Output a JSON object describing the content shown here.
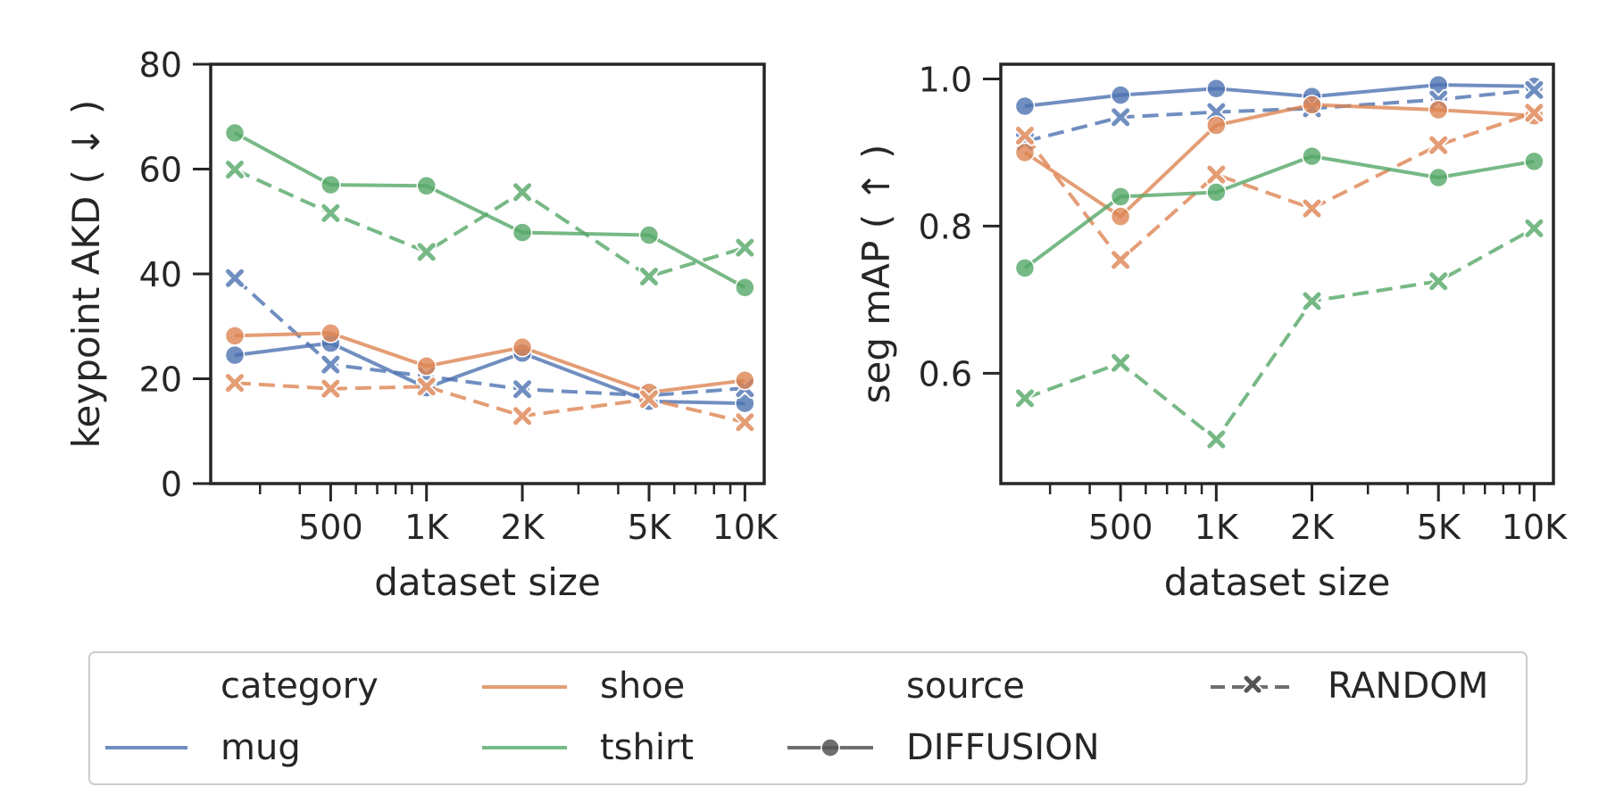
{
  "chart_data": [
    {
      "type": "line",
      "xlabel": "dataset size",
      "ylabel": "keypoint AKD ( ↓ )",
      "xscale": "log",
      "xlim": [
        210,
        11500
      ],
      "ylim": [
        0,
        80
      ],
      "xticks": [
        {
          "value": 500,
          "label": "500"
        },
        {
          "value": 1000,
          "label": "1K"
        },
        {
          "value": 2000,
          "label": "2K"
        },
        {
          "value": 5000,
          "label": "5K"
        },
        {
          "value": 10000,
          "label": "10K"
        }
      ],
      "yticks": [
        {
          "value": 0,
          "label": "0"
        },
        {
          "value": 20,
          "label": "20"
        },
        {
          "value": 40,
          "label": "40"
        },
        {
          "value": 60,
          "label": "60"
        },
        {
          "value": 80,
          "label": "80"
        }
      ],
      "x": [
        250,
        500,
        1000,
        2000,
        5000,
        10000
      ],
      "series": [
        {
          "category": "mug",
          "source": "DIFFUSION",
          "values": [
            24.5,
            26.8,
            18.3,
            24.9,
            15.7,
            15.3
          ]
        },
        {
          "category": "mug",
          "source": "RANDOM",
          "values": [
            39.2,
            22.7,
            20.5,
            18.0,
            16.8,
            18.2
          ]
        },
        {
          "category": "shoe",
          "source": "DIFFUSION",
          "values": [
            28.2,
            28.7,
            22.4,
            26.0,
            17.4,
            19.7
          ]
        },
        {
          "category": "shoe",
          "source": "RANDOM",
          "values": [
            19.2,
            18.1,
            18.5,
            12.9,
            16.1,
            11.7
          ]
        },
        {
          "category": "tshirt",
          "source": "DIFFUSION",
          "values": [
            66.9,
            57.0,
            56.8,
            47.9,
            47.4,
            37.4
          ]
        },
        {
          "category": "tshirt",
          "source": "RANDOM",
          "values": [
            59.9,
            51.6,
            44.2,
            55.6,
            39.5,
            45.0
          ]
        }
      ]
    },
    {
      "type": "line",
      "xlabel": "dataset size",
      "ylabel": "seg mAP ( ↑ )",
      "xscale": "log",
      "xlim": [
        210,
        11500
      ],
      "ylim": [
        0.45,
        1.02
      ],
      "xticks": [
        {
          "value": 500,
          "label": "500"
        },
        {
          "value": 1000,
          "label": "1K"
        },
        {
          "value": 2000,
          "label": "2K"
        },
        {
          "value": 5000,
          "label": "5K"
        },
        {
          "value": 10000,
          "label": "10K"
        }
      ],
      "yticks": [
        {
          "value": 0.6,
          "label": "0.6"
        },
        {
          "value": 0.8,
          "label": "0.8"
        },
        {
          "value": 1.0,
          "label": "1.0"
        }
      ],
      "x": [
        250,
        500,
        1000,
        2000,
        5000,
        10000
      ],
      "series": [
        {
          "category": "mug",
          "source": "DIFFUSION",
          "values": [
            0.963,
            0.978,
            0.987,
            0.976,
            0.992,
            0.99
          ]
        },
        {
          "category": "mug",
          "source": "RANDOM",
          "values": [
            0.915,
            0.948,
            0.955,
            0.96,
            0.972,
            0.985
          ]
        },
        {
          "category": "shoe",
          "source": "DIFFUSION",
          "values": [
            0.9,
            0.813,
            0.937,
            0.965,
            0.958,
            0.95
          ]
        },
        {
          "category": "shoe",
          "source": "RANDOM",
          "values": [
            0.923,
            0.754,
            0.87,
            0.824,
            0.91,
            0.954
          ]
        },
        {
          "category": "tshirt",
          "source": "DIFFUSION",
          "values": [
            0.743,
            0.84,
            0.846,
            0.895,
            0.866,
            0.888
          ]
        },
        {
          "category": "tshirt",
          "source": "RANDOM",
          "values": [
            0.566,
            0.614,
            0.51,
            0.698,
            0.725,
            0.797
          ]
        }
      ]
    }
  ],
  "legend": {
    "category_title": "category",
    "source_title": "source",
    "categories": [
      {
        "name": "mug",
        "color": "#4c72b0"
      },
      {
        "name": "shoe",
        "color": "#dd8452"
      },
      {
        "name": "tshirt",
        "color": "#55a868"
      }
    ],
    "sources": [
      {
        "name": "DIFFUSION",
        "marker": "circle",
        "dash": "solid"
      },
      {
        "name": "RANDOM",
        "marker": "x",
        "dash": "dashed"
      }
    ]
  },
  "colors": {
    "mug": "#4c72b0",
    "shoe": "#dd8452",
    "tshirt": "#55a868",
    "axis": "#262626",
    "legend_border": "#cccccc"
  }
}
